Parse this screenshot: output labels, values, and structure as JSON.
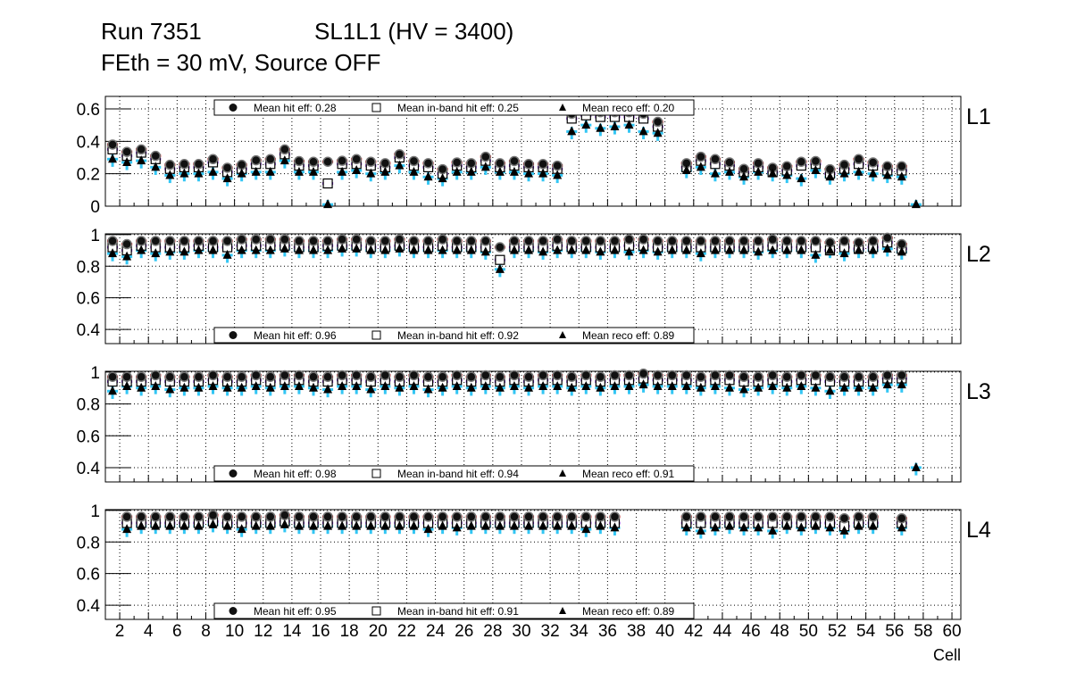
{
  "title": {
    "run": "Run 7351",
    "chamber": "SL1L1 (HV = 3400)",
    "conditions": "FEth = 30 mV, Source OFF"
  },
  "colors": {
    "hit_bar": "#cc0000",
    "inband_bar": "#7a1fd6",
    "reco_bar": "#33c6f4",
    "marker": "#000000"
  },
  "chart_data": [
    {
      "type": "scatter",
      "name": "L1",
      "label": "L1",
      "xlabel": "Cell",
      "ylabel": "",
      "xlim": [
        1,
        60.62
      ],
      "ylim": [
        0,
        0.677
      ],
      "yticks": [
        0,
        0.2,
        0.4,
        0.6
      ],
      "ytick_labels": [
        "0",
        "0.2",
        "0.4",
        "0.6"
      ],
      "legend": {
        "position": "top",
        "hit": "Mean hit  eff: 0.28",
        "inband": "Mean in-band hit eff: 0.25",
        "reco": "Mean reco eff: 0.20"
      },
      "hit": [
        0.38,
        0.335,
        0.35,
        0.31,
        0.255,
        0.26,
        0.26,
        0.29,
        0.237,
        0.255,
        0.283,
        0.29,
        0.35,
        0.278,
        0.274,
        0.274,
        0.28,
        0.29,
        0.274,
        0.265,
        0.32,
        0.278,
        0.265,
        0.228,
        0.27,
        0.265,
        0.305,
        0.265,
        0.278,
        0.26,
        0.26,
        0.25,
        0.57,
        0.59,
        0.58,
        0.58,
        0.58,
        0.57,
        0.52,
        null,
        0.265,
        0.305,
        0.29,
        0.27,
        0.23,
        0.265,
        0.237,
        0.246,
        0.274,
        0.278,
        0.228,
        0.255,
        0.29,
        0.27,
        0.246,
        0.246,
        null
      ],
      "inband": [
        0.35,
        0.31,
        0.33,
        0.29,
        0.23,
        0.24,
        0.24,
        0.27,
        0.21,
        0.23,
        0.26,
        0.26,
        0.32,
        0.25,
        0.25,
        0.14,
        0.26,
        0.26,
        0.25,
        0.24,
        0.3,
        0.25,
        0.24,
        0.2,
        0.25,
        0.24,
        0.28,
        0.24,
        0.25,
        0.24,
        0.24,
        0.23,
        0.54,
        0.56,
        0.55,
        0.55,
        0.55,
        0.54,
        0.49,
        null,
        0.24,
        0.28,
        0.26,
        0.25,
        0.21,
        0.24,
        0.21,
        0.22,
        0.25,
        0.26,
        0.2,
        0.23,
        0.26,
        0.25,
        0.22,
        0.22,
        null
      ],
      "reco": [
        0.29,
        0.27,
        0.28,
        0.24,
        0.19,
        0.2,
        0.2,
        0.21,
        0.17,
        0.2,
        0.21,
        0.21,
        0.28,
        0.21,
        0.21,
        0.01,
        0.21,
        0.22,
        0.2,
        0.21,
        0.25,
        0.21,
        0.18,
        0.17,
        0.21,
        0.21,
        0.24,
        0.21,
        0.21,
        0.2,
        0.2,
        0.19,
        0.46,
        0.5,
        0.48,
        0.49,
        0.5,
        0.46,
        0.45,
        null,
        0.22,
        0.24,
        0.2,
        0.21,
        0.18,
        0.21,
        0.2,
        0.19,
        0.17,
        0.22,
        0.18,
        0.2,
        0.21,
        0.2,
        0.19,
        0.18,
        0.01
      ]
    },
    {
      "type": "scatter",
      "name": "L2",
      "label": "L2",
      "xlabel": "Cell",
      "ylabel": "",
      "xlim": [
        1,
        60.62
      ],
      "ylim": [
        0.31,
        1.005
      ],
      "yticks": [
        0.4,
        0.6,
        0.8,
        1
      ],
      "ytick_labels": [
        "0.4",
        "0.6",
        "0.8",
        "1"
      ],
      "legend": {
        "position": "bottom",
        "hit": "Mean hit  eff: 0.96",
        "inband": "Mean in-band hit eff: 0.92",
        "reco": "Mean reco eff: 0.89"
      },
      "hit": [
        0.96,
        0.94,
        0.96,
        0.96,
        0.96,
        0.96,
        0.96,
        0.96,
        0.96,
        0.97,
        0.97,
        0.97,
        0.97,
        0.96,
        0.96,
        0.96,
        0.97,
        0.97,
        0.96,
        0.96,
        0.97,
        0.96,
        0.96,
        0.97,
        0.96,
        0.96,
        0.96,
        0.92,
        0.96,
        0.96,
        0.96,
        0.97,
        0.96,
        0.96,
        0.96,
        0.96,
        0.97,
        0.97,
        0.96,
        0.96,
        0.96,
        0.96,
        0.96,
        0.96,
        0.96,
        0.96,
        0.97,
        0.96,
        0.96,
        0.96,
        0.95,
        0.96,
        0.95,
        0.96,
        0.98,
        0.94,
        null
      ],
      "inband": [
        0.92,
        0.9,
        0.93,
        0.92,
        0.92,
        0.92,
        0.93,
        0.92,
        0.92,
        0.93,
        0.93,
        0.93,
        0.93,
        0.92,
        0.92,
        0.93,
        0.93,
        0.93,
        0.92,
        0.92,
        0.93,
        0.92,
        0.92,
        0.93,
        0.92,
        0.92,
        0.92,
        0.84,
        0.92,
        0.92,
        0.92,
        0.93,
        0.92,
        0.92,
        0.92,
        0.92,
        0.93,
        0.93,
        0.92,
        0.92,
        0.92,
        0.92,
        0.92,
        0.92,
        0.92,
        0.92,
        0.93,
        0.92,
        0.92,
        0.92,
        0.9,
        0.92,
        0.91,
        0.92,
        0.95,
        0.91,
        null
      ],
      "reco": [
        0.88,
        0.86,
        0.9,
        0.88,
        0.89,
        0.89,
        0.9,
        0.9,
        0.87,
        0.9,
        0.9,
        0.9,
        0.91,
        0.9,
        0.9,
        0.9,
        0.91,
        0.91,
        0.9,
        0.9,
        0.91,
        0.9,
        0.9,
        0.9,
        0.9,
        0.9,
        0.89,
        0.78,
        0.9,
        0.9,
        0.89,
        0.9,
        0.9,
        0.9,
        0.89,
        0.9,
        0.89,
        0.9,
        0.89,
        0.9,
        0.9,
        0.88,
        0.9,
        0.9,
        0.9,
        0.89,
        0.9,
        0.9,
        0.9,
        0.87,
        0.9,
        0.88,
        0.9,
        0.9,
        0.91,
        0.89,
        null
      ]
    },
    {
      "type": "scatter",
      "name": "L3",
      "label": "L3",
      "xlabel": "Cell",
      "ylabel": "",
      "xlim": [
        1,
        60.62
      ],
      "ylim": [
        0.31,
        1.005
      ],
      "yticks": [
        0.4,
        0.6,
        0.8,
        1
      ],
      "ytick_labels": [
        "0.4",
        "0.6",
        "0.8",
        "1"
      ],
      "legend": {
        "position": "bottom",
        "hit": "Mean hit  eff: 0.98",
        "inband": "Mean in-band hit eff: 0.94",
        "reco": "Mean reco eff: 0.91"
      },
      "hit": [
        0.97,
        0.97,
        0.97,
        0.98,
        0.97,
        0.97,
        0.97,
        0.98,
        0.97,
        0.97,
        0.98,
        0.97,
        0.98,
        0.98,
        0.97,
        0.97,
        0.98,
        0.98,
        0.97,
        0.98,
        0.97,
        0.98,
        0.97,
        0.97,
        0.98,
        0.97,
        0.98,
        0.97,
        0.98,
        0.97,
        0.98,
        0.98,
        0.97,
        0.98,
        0.97,
        0.98,
        0.98,
        0.99,
        0.98,
        0.98,
        0.98,
        0.97,
        0.98,
        0.98,
        0.97,
        0.97,
        0.98,
        0.97,
        0.98,
        0.98,
        0.97,
        0.97,
        0.97,
        0.97,
        0.98,
        0.98,
        null
      ],
      "inband": [
        0.94,
        0.94,
        0.94,
        0.95,
        0.94,
        0.94,
        0.94,
        0.95,
        0.94,
        0.94,
        0.95,
        0.94,
        0.95,
        0.95,
        0.94,
        0.94,
        0.95,
        0.95,
        0.94,
        0.95,
        0.94,
        0.95,
        0.94,
        0.94,
        0.95,
        0.94,
        0.95,
        0.94,
        0.95,
        0.94,
        0.95,
        0.95,
        0.94,
        0.95,
        0.94,
        0.95,
        0.95,
        0.96,
        0.95,
        0.95,
        0.95,
        0.94,
        0.95,
        0.95,
        0.94,
        0.94,
        0.95,
        0.94,
        0.95,
        0.95,
        0.94,
        0.94,
        0.94,
        0.94,
        0.96,
        0.96,
        null
      ],
      "reco": [
        0.88,
        0.91,
        0.9,
        0.91,
        0.89,
        0.9,
        0.9,
        0.91,
        0.9,
        0.9,
        0.91,
        0.9,
        0.91,
        0.91,
        0.9,
        0.89,
        0.91,
        0.91,
        0.89,
        0.91,
        0.9,
        0.91,
        0.89,
        0.9,
        0.91,
        0.9,
        0.91,
        0.9,
        0.91,
        0.9,
        0.91,
        0.91,
        0.9,
        0.91,
        0.9,
        0.91,
        0.91,
        0.92,
        0.91,
        0.91,
        0.91,
        0.9,
        0.91,
        0.9,
        0.89,
        0.9,
        0.91,
        0.9,
        0.91,
        0.9,
        0.88,
        0.9,
        0.9,
        0.9,
        0.92,
        0.92,
        0.4
      ]
    },
    {
      "type": "scatter",
      "name": "L4",
      "label": "L4",
      "xlabel": "Cell",
      "ylabel": "",
      "xlim": [
        1,
        60.62
      ],
      "ylim": [
        0.31,
        1.005
      ],
      "yticks": [
        0.4,
        0.6,
        0.8,
        1
      ],
      "ytick_labels": [
        "0.4",
        "0.6",
        "0.8",
        "1"
      ],
      "xticks": [
        2,
        4,
        6,
        8,
        10,
        12,
        14,
        16,
        18,
        20,
        22,
        24,
        26,
        28,
        30,
        32,
        34,
        36,
        38,
        40,
        42,
        44,
        46,
        48,
        50,
        52,
        54,
        56,
        58,
        60
      ],
      "legend": {
        "position": "bottom",
        "hit": "Mean hit  eff: 0.95",
        "inband": "Mean in-band hit eff: 0.91",
        "reco": "Mean reco eff: 0.89"
      },
      "hit": [
        null,
        0.96,
        0.96,
        0.96,
        0.96,
        0.96,
        0.96,
        0.97,
        0.96,
        0.96,
        0.96,
        0.96,
        0.97,
        0.96,
        0.96,
        0.96,
        0.96,
        0.96,
        0.96,
        0.96,
        0.96,
        0.96,
        0.96,
        0.96,
        0.96,
        0.96,
        0.96,
        0.96,
        0.96,
        0.96,
        0.96,
        0.96,
        0.96,
        0.96,
        0.96,
        0.96,
        null,
        null,
        null,
        null,
        0.96,
        0.96,
        0.96,
        0.96,
        0.96,
        0.96,
        0.96,
        0.96,
        0.96,
        0.96,
        0.96,
        0.95,
        0.96,
        0.96,
        null,
        0.95
      ],
      "inband": [
        null,
        0.92,
        0.92,
        0.92,
        0.92,
        0.92,
        0.92,
        0.93,
        0.92,
        0.92,
        0.92,
        0.92,
        0.93,
        0.92,
        0.92,
        0.92,
        0.92,
        0.92,
        0.92,
        0.92,
        0.92,
        0.92,
        0.92,
        0.92,
        0.92,
        0.92,
        0.92,
        0.92,
        0.92,
        0.92,
        0.92,
        0.92,
        0.92,
        0.92,
        0.92,
        0.92,
        null,
        null,
        null,
        null,
        0.92,
        0.92,
        0.92,
        0.92,
        0.92,
        0.92,
        0.92,
        0.92,
        0.92,
        0.92,
        0.92,
        0.9,
        0.92,
        0.92,
        null,
        0.92
      ],
      "reco": [
        null,
        0.88,
        0.9,
        0.9,
        0.9,
        0.9,
        0.9,
        0.91,
        0.9,
        0.88,
        0.9,
        0.9,
        0.91,
        0.9,
        0.9,
        0.9,
        0.9,
        0.9,
        0.9,
        0.9,
        0.9,
        0.9,
        0.88,
        0.9,
        0.89,
        0.9,
        0.9,
        0.9,
        0.9,
        0.9,
        0.9,
        0.9,
        0.9,
        0.88,
        0.9,
        0.89,
        null,
        null,
        null,
        null,
        0.89,
        0.87,
        0.89,
        0.9,
        0.89,
        0.89,
        0.87,
        0.9,
        0.89,
        0.9,
        0.89,
        0.87,
        0.9,
        0.9,
        null,
        0.89
      ]
    }
  ]
}
